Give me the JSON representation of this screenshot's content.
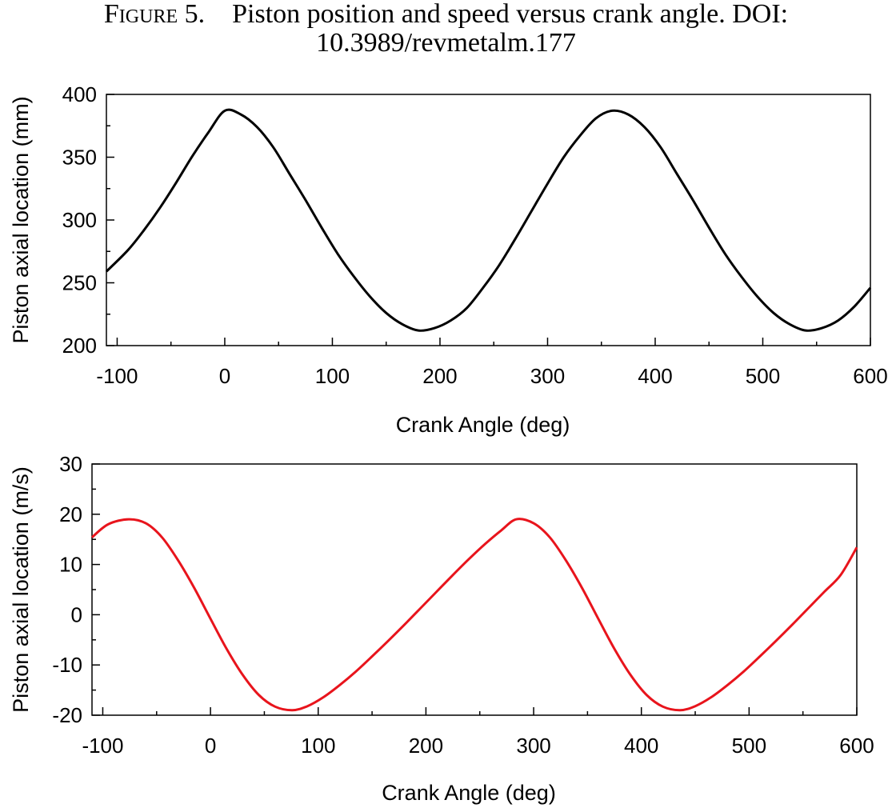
{
  "figure": {
    "label": "Figure 5.",
    "caption_line1": "Piston position and speed versus crank angle. DOI:",
    "caption_line2": "10.3989/revmetalm.177"
  },
  "chart_data": [
    {
      "type": "line",
      "xlabel": "Crank Angle (deg)",
      "ylabel": "Piston axial location (mm)",
      "xlim": [
        -110,
        600
      ],
      "ylim": [
        200,
        400
      ],
      "xticks": [
        -100,
        0,
        100,
        200,
        300,
        400,
        500,
        600
      ],
      "yticks": [
        200,
        250,
        300,
        350,
        400
      ],
      "x_tick_labels": [
        "-100",
        "0",
        "100",
        "200",
        "300",
        "400",
        "500",
        "600"
      ],
      "y_tick_labels": [
        "200",
        "250",
        "300",
        "350",
        "400"
      ],
      "grid": false,
      "series": [
        {
          "color": "#000000",
          "x": [
            -110,
            -90,
            -75,
            -60,
            -45,
            -30,
            -15,
            0,
            15,
            30,
            45,
            60,
            75,
            90,
            105,
            120,
            135,
            150,
            165,
            180,
            195,
            210,
            225,
            240,
            255,
            270,
            285,
            300,
            315,
            330,
            345,
            360,
            375,
            390,
            405,
            420,
            435,
            450,
            465,
            480,
            495,
            510,
            525,
            540,
            555,
            570,
            585,
            600
          ],
          "y": [
            259,
            276,
            292,
            310,
            330,
            351,
            370,
            387,
            384,
            374,
            358,
            337,
            316,
            294,
            273,
            255,
            239,
            226,
            217,
            212,
            214,
            220,
            230,
            246,
            264,
            285,
            307,
            329,
            350,
            367,
            381,
            387,
            384,
            374,
            358,
            337,
            316,
            294,
            273,
            255,
            239,
            226,
            217,
            212,
            214,
            220,
            231,
            246
          ]
        }
      ]
    },
    {
      "type": "line",
      "xlabel": "Crank Angle (deg)",
      "ylabel": "Piston axial location (m/s)",
      "xlim": [
        -110,
        600
      ],
      "ylim": [
        -20,
        30
      ],
      "xticks": [
        -100,
        0,
        100,
        200,
        300,
        400,
        500,
        600
      ],
      "yticks": [
        -20,
        -10,
        0,
        10,
        20,
        30
      ],
      "x_tick_labels": [
        "-100",
        "0",
        "100",
        "200",
        "300",
        "400",
        "500",
        "600"
      ],
      "y_tick_labels": [
        "-20",
        "-10",
        "0",
        "10",
        "20",
        "30"
      ],
      "grid": false,
      "series": [
        {
          "color": "#e8141c",
          "x": [
            -110,
            -95,
            -76,
            -60,
            -45,
            -30,
            -15,
            0,
            15,
            30,
            45,
            60,
            76,
            90,
            105,
            120,
            135,
            150,
            165,
            180,
            195,
            210,
            225,
            240,
            255,
            270,
            284,
            300,
            315,
            330,
            345,
            360,
            375,
            390,
            405,
            420,
            436,
            450,
            465,
            480,
            495,
            510,
            525,
            540,
            555,
            570,
            585,
            600
          ],
          "y": [
            15.4,
            18.0,
            19.0,
            18.2,
            15.4,
            10.8,
            5.3,
            -0.8,
            -6.8,
            -12.0,
            -16.0,
            -18.3,
            -19.0,
            -18.2,
            -16.4,
            -14.0,
            -11.3,
            -8.3,
            -5.2,
            -2.0,
            1.3,
            4.6,
            7.9,
            11.1,
            14.1,
            16.8,
            19.0,
            18.2,
            15.4,
            10.8,
            5.3,
            -0.8,
            -6.8,
            -12.0,
            -16.0,
            -18.3,
            -19.0,
            -18.2,
            -16.4,
            -14.0,
            -11.3,
            -8.3,
            -5.2,
            -2.0,
            1.3,
            4.6,
            7.9,
            13.4
          ]
        }
      ]
    }
  ]
}
